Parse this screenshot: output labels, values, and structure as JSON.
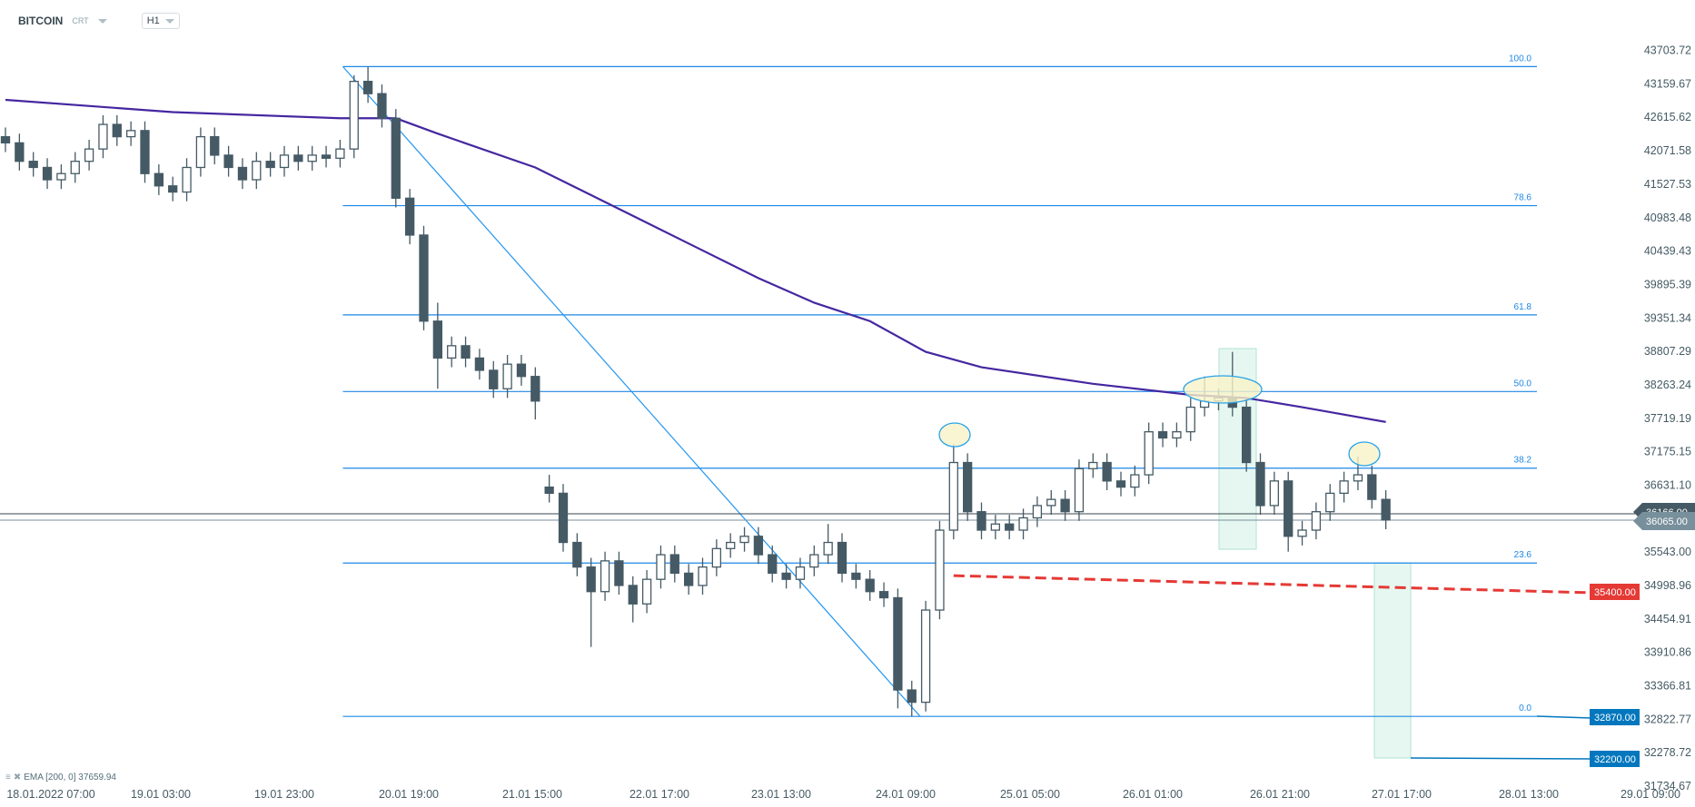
{
  "header": {
    "symbol": "BITCOIN",
    "type": "CRT",
    "timeframe": "H1"
  },
  "legend": {
    "ema_label": "EMA [200, 0] 37659.94"
  },
  "price_tags": {
    "current_bid": "36065.00",
    "current_ask": "36166.00",
    "red_level": "35400.00",
    "blue_level_1": "32870.00",
    "blue_level_2": "32200.00"
  },
  "colors": {
    "candle": "#455a64",
    "ema": "#4527a0",
    "fib": "#1e88e5",
    "red": "#e53935",
    "blue_tag": "#0277bd",
    "box": "#e6f7f1",
    "ellipse": "#f7f3c8"
  },
  "chart_data": {
    "type": "candlestick",
    "title": "BITCOIN H1",
    "y_ticks": [
      "43703.72",
      "43159.67",
      "42615.62",
      "42071.58",
      "41527.53",
      "40983.48",
      "40439.43",
      "39895.39",
      "39351.34",
      "38807.29",
      "38263.24",
      "37719.19",
      "37175.15",
      "36631.10",
      "35543.00",
      "34998.96",
      "34454.91",
      "33910.86",
      "33366.81",
      "32822.77",
      "32278.72",
      "31734.67"
    ],
    "ylim": [
      31734.67,
      43703.72
    ],
    "x_ticks": [
      "18.01.2022  07:00",
      "19.01  03:00",
      "19.01  23:00",
      "20.01  19:00",
      "21.01  15:00",
      "22.01  17:00",
      "23.01  13:00",
      "24.01  09:00",
      "25.01  05:00",
      "26.01  01:00",
      "26.01  21:00",
      "27.01  17:00",
      "28.01  13:00",
      "29.01  09:00"
    ],
    "first_open": 42300,
    "gap_opens": {
      "39": 36600
    },
    "close": [
      42200,
      41900,
      41800,
      41600,
      41700,
      41900,
      42100,
      42500,
      42300,
      42400,
      41700,
      41500,
      41400,
      41800,
      42300,
      42000,
      41800,
      41600,
      41900,
      41800,
      42000,
      41900,
      42000,
      41950,
      42100,
      43200,
      43000,
      42600,
      41300,
      40700,
      39300,
      38700,
      38900,
      38700,
      38500,
      38200,
      38600,
      38400,
      38000,
      36500,
      35700,
      35300,
      34900,
      35400,
      35000,
      34700,
      35100,
      35500,
      35200,
      35000,
      35300,
      35600,
      35700,
      35800,
      35500,
      35200,
      35100,
      35300,
      35500,
      35700,
      35200,
      35100,
      34900,
      34800,
      33300,
      33100,
      34600,
      35900,
      37000,
      36200,
      35900,
      36000,
      35900,
      36100,
      36300,
      36400,
      36200,
      36900,
      37000,
      36700,
      36600,
      36800,
      37500,
      37400,
      37500,
      37900,
      38000,
      38050,
      37900,
      37000,
      36300,
      36700,
      35800,
      35900,
      36200,
      36500,
      36700,
      36800,
      36400,
      36065
    ],
    "default_wick": 150,
    "high_overrides": {
      "25": 43300,
      "26": 43440,
      "31": 39600,
      "39": 36800,
      "59": 36000,
      "68": 37300,
      "86": 38400,
      "88": 38800,
      "97": 37100
    },
    "low_overrides": {
      "31": 38200,
      "38": 37700,
      "42": 34000,
      "45": 34400,
      "64": 33000,
      "65": 32870,
      "92": 35550
    },
    "ema": [
      [
        0,
        42900
      ],
      [
        12,
        42700
      ],
      [
        24,
        42600
      ],
      [
        28,
        42600
      ],
      [
        31,
        42350
      ],
      [
        38,
        41800
      ],
      [
        46,
        40900
      ],
      [
        54,
        40000
      ],
      [
        58,
        39600
      ],
      [
        62,
        39300
      ],
      [
        66,
        38800
      ],
      [
        70,
        38550
      ],
      [
        78,
        38280
      ],
      [
        85,
        38100
      ],
      [
        89,
        38050
      ],
      [
        93,
        37900
      ],
      [
        99,
        37659.94
      ]
    ],
    "fibonacci": {
      "high": 43440,
      "low": 32870,
      "levels": [
        {
          "label": "100.0",
          "price": 43440
        },
        {
          "label": "78.6",
          "price": 41178
        },
        {
          "label": "61.8",
          "price": 39402
        },
        {
          "label": "50.0",
          "price": 38155
        },
        {
          "label": "38.2",
          "price": 36908
        },
        {
          "label": "23.6",
          "price": 35365
        },
        {
          "label": "0.0",
          "price": 32870
        }
      ]
    },
    "trendline": {
      "from": [
        24.2,
        43440
      ],
      "to": [
        65.6,
        32870
      ]
    },
    "support_line": {
      "from": [
        68,
        35160
      ],
      "to": [
        114,
        34880
      ]
    },
    "current_prices": [
      36166,
      36065
    ]
  }
}
